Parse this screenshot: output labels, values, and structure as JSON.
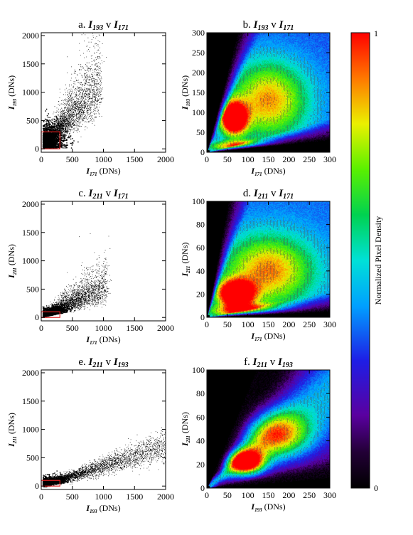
{
  "chart_data": [
    {
      "type": "scatter",
      "panel": "a",
      "title_prefix": "a.",
      "title_y": "I",
      "title_y_sub": "193",
      "title_v": "v",
      "title_x": "I",
      "title_x_sub": "171",
      "xlabel_sym": "I",
      "xlabel_sub": "171",
      "xlabel_unit": "(DNs)",
      "ylabel_sym": "I",
      "ylabel_sub": "193",
      "ylabel_unit": "(DNs)",
      "xlim": [
        0,
        2000
      ],
      "ylim": [
        -60,
        2050
      ],
      "xticks": [
        0,
        500,
        1000,
        1500,
        2000
      ],
      "yticks": [
        0,
        500,
        1000,
        1500,
        2000
      ],
      "cluster_slope": 1.25,
      "cluster_spread": 0.55,
      "cluster_extent": 900,
      "zoom_box": [
        0,
        0,
        300,
        300
      ]
    },
    {
      "type": "heatmap",
      "panel": "b",
      "title_prefix": "b.",
      "title_y": "I",
      "title_y_sub": "193",
      "title_v": "v",
      "title_x": "I",
      "title_x_sub": "171",
      "xlabel_sym": "I",
      "xlabel_sub": "171",
      "xlabel_unit": "(DNs)",
      "ylabel_sym": "I",
      "ylabel_sub": "193",
      "ylabel_unit": "(DNs)",
      "xlim": [
        0,
        300
      ],
      "ylim": [
        0,
        300
      ],
      "xticks": [
        0,
        50,
        100,
        150,
        200,
        250,
        300
      ],
      "yticks": [
        0,
        50,
        100,
        150,
        200,
        250,
        300
      ],
      "peaks": [
        {
          "x": 65,
          "y": 85,
          "amp": 1.0,
          "sx": 22,
          "sy": 28
        },
        {
          "x": 110,
          "y": 15,
          "amp": 0.7,
          "sx": 70,
          "sy": 9
        },
        {
          "x": 150,
          "y": 130,
          "amp": 0.55,
          "sx": 70,
          "sy": 70
        }
      ],
      "background": 0.33,
      "mask_angle_low_deg": 6,
      "mask_angle_high_deg": 76
    },
    {
      "type": "scatter",
      "panel": "c",
      "title_prefix": "c.",
      "title_y": "I",
      "title_y_sub": "211",
      "title_v": "v",
      "title_x": "I",
      "title_x_sub": "171",
      "xlabel_sym": "I",
      "xlabel_sub": "171",
      "xlabel_unit": "(DNs)",
      "ylabel_sym": "I",
      "ylabel_sub": "211",
      "ylabel_unit": "(DNs)",
      "xlim": [
        0,
        2000
      ],
      "ylim": [
        -60,
        2050
      ],
      "xticks": [
        0,
        500,
        1000,
        1500,
        2000
      ],
      "yticks": [
        0,
        500,
        1000,
        1500,
        2000
      ],
      "cluster_slope": 0.55,
      "cluster_spread": 0.6,
      "cluster_extent": 1000,
      "zoom_box": [
        0,
        0,
        300,
        100
      ]
    },
    {
      "type": "heatmap",
      "panel": "d",
      "title_prefix": "d.",
      "title_y": "I",
      "title_y_sub": "211",
      "title_v": "v",
      "title_x": "I",
      "title_x_sub": "171",
      "xlabel_sym": "I",
      "xlabel_sub": "171",
      "xlabel_unit": "(DNs)",
      "ylabel_sym": "I",
      "ylabel_sub": "211",
      "ylabel_unit": "(DNs)",
      "xlim": [
        0,
        300
      ],
      "ylim": [
        0,
        100
      ],
      "xticks": [
        0,
        50,
        100,
        150,
        200,
        250,
        300
      ],
      "yticks": [
        0,
        20,
        40,
        60,
        80,
        100
      ],
      "peaks": [
        {
          "x": 70,
          "y": 20,
          "amp": 1.0,
          "sx": 30,
          "sy": 8
        },
        {
          "x": 120,
          "y": 5,
          "amp": 0.6,
          "sx": 80,
          "sy": 4
        },
        {
          "x": 150,
          "y": 40,
          "amp": 0.55,
          "sx": 80,
          "sy": 22
        }
      ],
      "background": 0.35,
      "mask_angle_low_deg": 3,
      "mask_angle_high_deg": 80
    },
    {
      "type": "scatter",
      "panel": "e",
      "title_prefix": "e.",
      "title_y": "I",
      "title_y_sub": "211",
      "title_v": "v",
      "title_x": "I",
      "title_x_sub": "193",
      "xlabel_sym": "I",
      "xlabel_sub": "193",
      "xlabel_unit": "(DNs)",
      "ylabel_sym": "I",
      "ylabel_sub": "211",
      "ylabel_unit": "(DNs)",
      "xlim": [
        0,
        2000
      ],
      "ylim": [
        -60,
        2050
      ],
      "xticks": [
        0,
        500,
        1000,
        1500,
        2000
      ],
      "yticks": [
        0,
        500,
        1000,
        1500,
        2000
      ],
      "cluster_slope": 0.36,
      "cluster_spread": 0.22,
      "cluster_extent": 2000,
      "zoom_box": [
        0,
        0,
        300,
        100
      ]
    },
    {
      "type": "heatmap",
      "panel": "f",
      "title_prefix": "f.",
      "title_y": "I",
      "title_y_sub": "211",
      "title_v": "v",
      "title_x": "I",
      "title_x_sub": "193",
      "xlabel_sym": "I",
      "xlabel_sub": "193",
      "xlabel_unit": "(DNs)",
      "ylabel_sym": "I",
      "ylabel_sub": "211",
      "ylabel_unit": "(DNs)",
      "xlim": [
        0,
        300
      ],
      "ylim": [
        0,
        100
      ],
      "xticks": [
        0,
        50,
        100,
        150,
        200,
        250,
        300
      ],
      "yticks": [
        0,
        20,
        40,
        60,
        80,
        100
      ],
      "peaks": [
        {
          "x": 95,
          "y": 22,
          "amp": 1.0,
          "sx": 30,
          "sy": 7
        },
        {
          "x": 170,
          "y": 45,
          "amp": 0.55,
          "sx": 60,
          "sy": 14
        }
      ],
      "band_slope": 0.27,
      "band_width": 0.45,
      "background": 0.33,
      "mask_angle_low_deg": 5,
      "mask_angle_high_deg": 68
    }
  ],
  "colorbar": {
    "label": "Normalized Pixel Density",
    "max_label": "1",
    "min_label": "0",
    "colormap": "rainbow",
    "range": [
      0,
      1
    ]
  },
  "colors": {
    "scatter_points": "#000000",
    "zoom_box": "#e02020",
    "heatmap_mask": "#000000",
    "contour": "#505050"
  }
}
